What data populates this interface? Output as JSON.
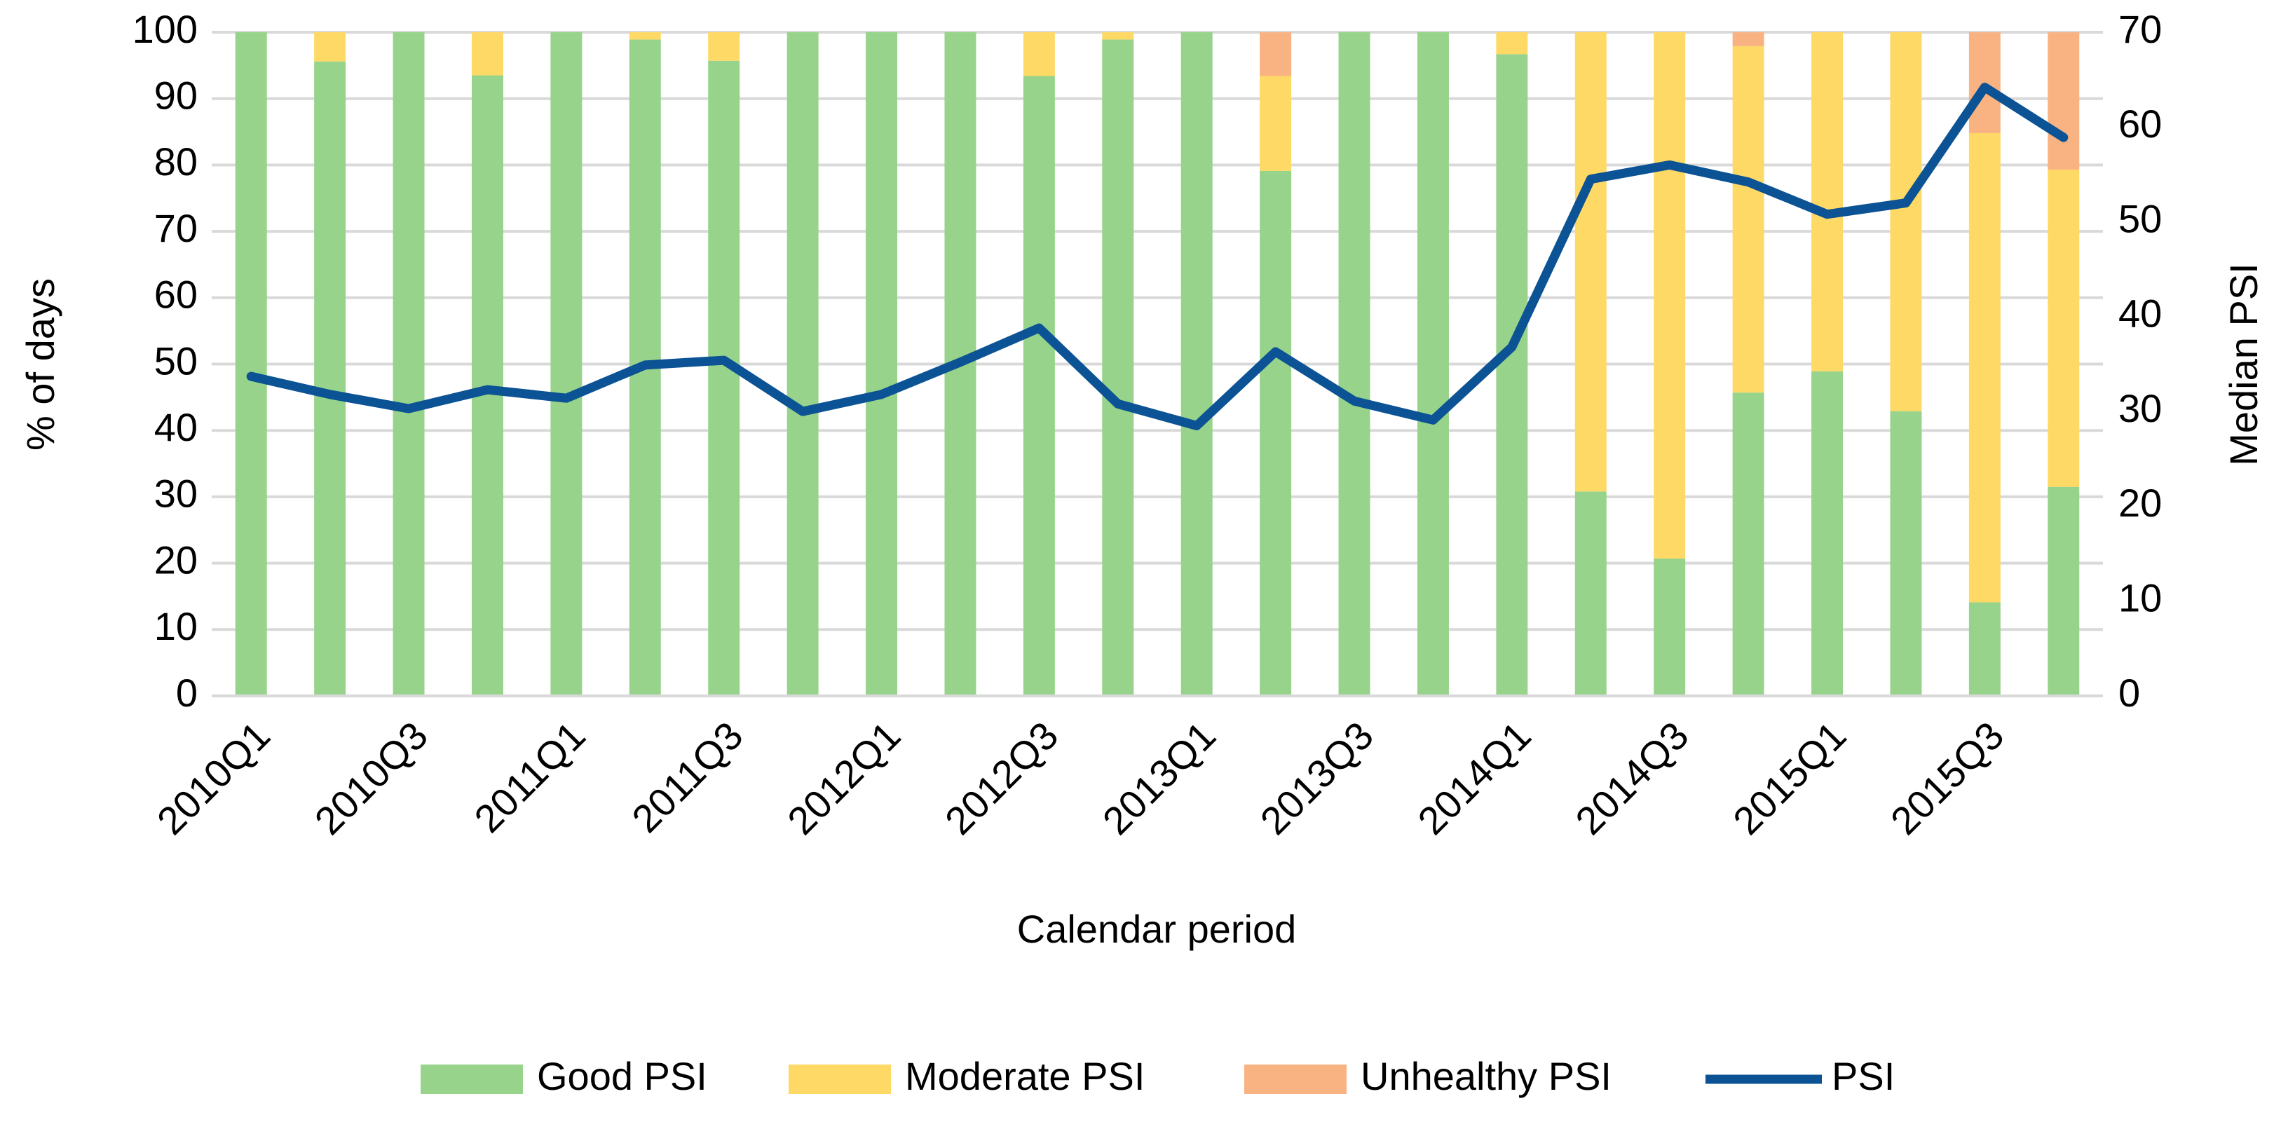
{
  "chart_data": {
    "type": "bar",
    "stacked": true,
    "x_label": "Calendar period",
    "y_label": "% of days",
    "y2_label": "Median PSI",
    "categories": [
      "2010Q1",
      null,
      "2010Q3",
      null,
      "2011Q1",
      null,
      "2011Q3",
      null,
      "2012Q1",
      null,
      "2012Q3",
      null,
      "2013Q1",
      null,
      "2013Q3",
      null,
      "2014Q1",
      null,
      "2014Q3",
      null,
      "2015Q1",
      null,
      "2015Q3",
      null
    ],
    "series": [
      {
        "name": "Good PSI",
        "color": "#97d38a",
        "values": [
          100,
          95.6,
          100,
          93.5,
          100,
          98.9,
          95.7,
          100,
          100,
          100,
          93.4,
          98.9,
          100,
          79.1,
          100,
          100,
          96.7,
          30.8,
          20.7,
          45.7,
          48.9,
          42.9,
          14.1,
          31.5
        ]
      },
      {
        "name": "Moderate PSI",
        "color": "#ffd966",
        "values": [
          0,
          4.4,
          0,
          6.5,
          0,
          1.1,
          4.3,
          0,
          0,
          0,
          6.6,
          1.1,
          0,
          14.3,
          0,
          0,
          3.3,
          69.2,
          79.3,
          52.2,
          51.1,
          57.1,
          70.7,
          47.8
        ]
      },
      {
        "name": "Unhealthy PSI",
        "color": "#f9b282",
        "values": [
          0,
          0,
          0,
          0,
          0,
          0,
          0,
          0,
          0,
          0,
          0,
          0,
          0,
          6.6,
          0,
          0,
          0,
          0,
          0,
          2.1,
          0,
          0,
          15.2,
          20.7
        ]
      },
      {
        "name": "PSI",
        "color": "#0b5394",
        "type": "line",
        "axis": "y2",
        "values": [
          33.7,
          31.8,
          30.3,
          32.3,
          31.4,
          34.9,
          35.4,
          30.0,
          31.8,
          35.2,
          38.8,
          30.8,
          28.5,
          36.3,
          31.1,
          29.1,
          36.8,
          54.5,
          56.0,
          54.2,
          50.8,
          52.0,
          64.2,
          58.9
        ]
      }
    ],
    "ylim": [
      0,
      100
    ],
    "yticks": [
      0,
      10,
      20,
      30,
      40,
      50,
      60,
      70,
      80,
      90,
      100
    ],
    "y2lim": [
      0,
      70
    ],
    "y2ticks": [
      0,
      10,
      20,
      30,
      40,
      50,
      60,
      70
    ],
    "grid": true,
    "legend": "bottom"
  }
}
